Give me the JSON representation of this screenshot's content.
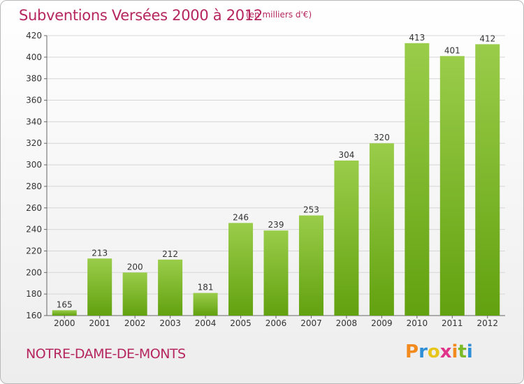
{
  "header": {
    "title": "Subventions Versées 2000 à 2012",
    "unit": "(en milliers d'€)"
  },
  "footer": {
    "commune": "NOTRE-DAME-DE-MONTS",
    "logo": "Proxiti"
  },
  "colors": {
    "title": "#b5265e",
    "bar_light": "#9acd4a",
    "bar_dark": "#62a10f",
    "grid": "#d6d6d6",
    "axis_text": "#333333"
  },
  "chart_data": {
    "type": "bar",
    "title": "Subventions Versées 2000 à 2012",
    "subtitle": "(en milliers d'€)",
    "xlabel": "",
    "ylabel": "",
    "categories": [
      "2000",
      "2001",
      "2002",
      "2003",
      "2004",
      "2005",
      "2006",
      "2007",
      "2008",
      "2009",
      "2010",
      "2011",
      "2012"
    ],
    "values": [
      165,
      213,
      200,
      212,
      181,
      246,
      239,
      253,
      304,
      320,
      413,
      401,
      412
    ],
    "ylim": [
      160,
      420
    ],
    "yticks": [
      160,
      180,
      200,
      220,
      240,
      260,
      280,
      300,
      320,
      340,
      360,
      380,
      400,
      420
    ],
    "grid": true,
    "legend": "none"
  }
}
